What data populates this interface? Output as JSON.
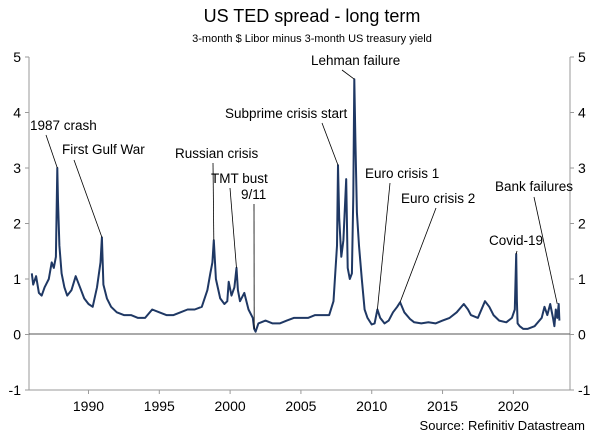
{
  "chart_data": {
    "type": "line",
    "title": "US TED spread - long term",
    "subtitle": "3-month  $ Libor minus 3-month US treasury yield",
    "source": "Source: Refinitiv Datastream",
    "xlabel": "",
    "ylabel": "",
    "xlim": [
      1985.8,
      2024.0
    ],
    "ylim": [
      -1,
      5
    ],
    "grid": false,
    "x_ticks": [
      1990,
      1995,
      2000,
      2005,
      2010,
      2015,
      2020
    ],
    "y_ticks": [
      -1,
      0,
      1,
      2,
      3,
      4,
      5
    ],
    "line_color": "#1f3864",
    "series": [
      {
        "x": [
          1986.0,
          1986.1,
          1986.3,
          1986.5,
          1986.7,
          1986.9,
          1987.0,
          1987.2,
          1987.4,
          1987.55,
          1987.7,
          1987.8,
          1987.85,
          1987.95,
          1988.1,
          1988.3,
          1988.5,
          1988.8,
          1989.1,
          1989.4,
          1989.7,
          1990.0,
          1990.3,
          1990.6,
          1990.85,
          1990.95,
          1991.05,
          1991.3,
          1991.6,
          1992.0,
          1992.5,
          1993.0,
          1993.5,
          1994.0,
          1994.5,
          1995.0,
          1995.5,
          1996.0,
          1996.5,
          1997.0,
          1997.5,
          1998.0,
          1998.4,
          1998.6,
          1998.75,
          1998.85,
          1999.0,
          1999.3,
          1999.6,
          1999.8,
          1999.9,
          2000.1,
          2000.3,
          2000.45,
          2000.55,
          2000.7,
          2001.0,
          2001.3,
          2001.6,
          2001.7,
          2001.8,
          2002.0,
          2002.5,
          2003.0,
          2003.5,
          2004.0,
          2004.5,
          2005.0,
          2005.5,
          2006.0,
          2006.5,
          2007.0,
          2007.3,
          2007.55,
          2007.62,
          2007.7,
          2007.85,
          2008.0,
          2008.2,
          2008.3,
          2008.45,
          2008.6,
          2008.7,
          2008.77,
          2008.85,
          2008.95,
          2009.1,
          2009.3,
          2009.5,
          2009.7,
          2010.0,
          2010.2,
          2010.4,
          2010.6,
          2010.9,
          2011.2,
          2011.5,
          2011.8,
          2012.0,
          2012.3,
          2012.7,
          2013.0,
          2013.5,
          2014.0,
          2014.5,
          2015.0,
          2015.5,
          2016.0,
          2016.5,
          2016.8,
          2017.0,
          2017.5,
          2018.0,
          2018.3,
          2018.6,
          2019.0,
          2019.5,
          2019.9,
          2020.1,
          2020.2,
          2020.25,
          2020.3,
          2020.45,
          2020.7,
          2021.0,
          2021.5,
          2022.0,
          2022.2,
          2022.4,
          2022.6,
          2022.8,
          2022.9,
          2023.0,
          2023.1,
          2023.2,
          2023.25
        ],
        "values": [
          1.1,
          0.9,
          1.05,
          0.75,
          0.7,
          0.85,
          0.9,
          1.0,
          1.3,
          1.2,
          1.4,
          3.0,
          2.4,
          1.6,
          1.1,
          0.85,
          0.7,
          0.8,
          1.05,
          0.85,
          0.65,
          0.55,
          0.5,
          0.85,
          1.3,
          1.75,
          0.9,
          0.65,
          0.5,
          0.4,
          0.35,
          0.35,
          0.3,
          0.3,
          0.45,
          0.4,
          0.35,
          0.35,
          0.4,
          0.45,
          0.45,
          0.5,
          0.8,
          1.1,
          1.3,
          1.7,
          1.0,
          0.65,
          0.55,
          0.6,
          0.95,
          0.7,
          0.85,
          1.2,
          0.8,
          0.6,
          0.75,
          0.45,
          0.3,
          0.1,
          0.05,
          0.2,
          0.25,
          0.2,
          0.2,
          0.25,
          0.3,
          0.3,
          0.3,
          0.35,
          0.35,
          0.35,
          0.6,
          1.6,
          3.05,
          2.1,
          1.4,
          1.7,
          2.8,
          1.2,
          1.0,
          1.1,
          2.5,
          4.6,
          3.5,
          2.2,
          1.6,
          1.0,
          0.45,
          0.3,
          0.18,
          0.2,
          0.45,
          0.3,
          0.2,
          0.25,
          0.4,
          0.5,
          0.58,
          0.4,
          0.28,
          0.22,
          0.2,
          0.22,
          0.2,
          0.25,
          0.3,
          0.4,
          0.55,
          0.45,
          0.35,
          0.3,
          0.6,
          0.5,
          0.35,
          0.25,
          0.22,
          0.3,
          0.45,
          1.45,
          0.6,
          0.2,
          0.15,
          0.1,
          0.1,
          0.15,
          0.3,
          0.5,
          0.35,
          0.55,
          0.3,
          0.15,
          0.45,
          0.3,
          0.55,
          0.25
        ]
      }
    ],
    "annotations": [
      {
        "text": "1987 crash",
        "x": 1987.8,
        "y": 3.0
      },
      {
        "text": "First Gulf War",
        "x": 1990.95,
        "y": 1.75
      },
      {
        "text": "Russian crisis",
        "x": 1998.85,
        "y": 1.7
      },
      {
        "text": "TMT bust",
        "x": 2000.45,
        "y": 1.2
      },
      {
        "text": "9/11",
        "x": 2001.7,
        "y": 0.1
      },
      {
        "text": "Subprime crisis start",
        "x": 2007.62,
        "y": 3.05
      },
      {
        "text": "Lehman failure",
        "x": 2008.77,
        "y": 4.6
      },
      {
        "text": "Euro crisis 1",
        "x": 2010.4,
        "y": 0.45
      },
      {
        "text": "Euro crisis 2",
        "x": 2012.0,
        "y": 0.58
      },
      {
        "text": "Covid-19",
        "x": 2020.2,
        "y": 1.45
      },
      {
        "text": "Bank failures",
        "x": 2023.1,
        "y": 0.55
      }
    ]
  }
}
